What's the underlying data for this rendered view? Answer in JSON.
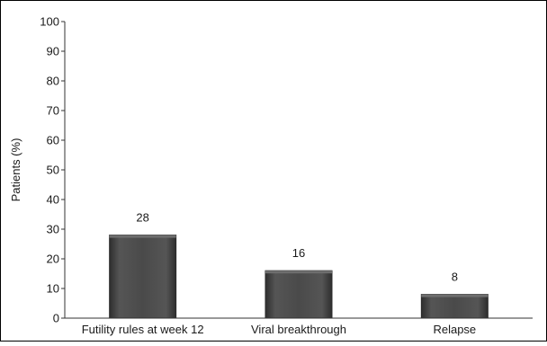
{
  "chart_data": {
    "type": "bar",
    "title": "",
    "xlabel": "",
    "ylabel": "Patients (%)",
    "ylim": [
      0,
      100
    ],
    "yticks": [
      0,
      10,
      20,
      30,
      40,
      50,
      60,
      70,
      80,
      90,
      100
    ],
    "grid": false,
    "legend": "none",
    "categories": [
      "Futility rules at week 12",
      "Viral breakthrough",
      "Relapse"
    ],
    "values": [
      28,
      16,
      8
    ],
    "data_labels": [
      "28",
      "16",
      "8"
    ],
    "colors": {
      "bar_fill": "#4a4a4a",
      "bar_dark": "#2a2a2a",
      "bar_light": "#6e6e6e",
      "axis": "#333333",
      "frame": "#000000"
    }
  }
}
